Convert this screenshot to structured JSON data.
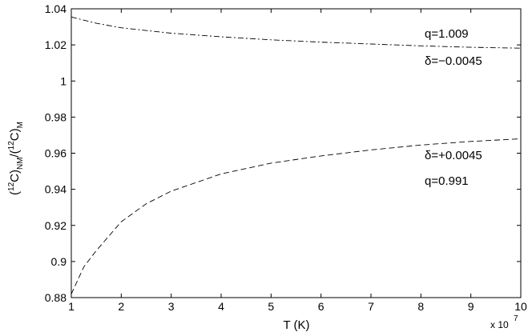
{
  "chart_data": {
    "type": "line",
    "xlabel": "T (K)",
    "ylabel": "(12C)NM/(12C)M",
    "x_multiplier": "x 10",
    "x_multiplier_exponent": "7",
    "xlim": [
      1,
      10
    ],
    "ylim": [
      0.88,
      1.04
    ],
    "x_ticks": [
      "1",
      "2",
      "3",
      "4",
      "5",
      "6",
      "7",
      "8",
      "9",
      "10"
    ],
    "y_ticks": [
      "0.88",
      "0.9",
      "0.92",
      "0.94",
      "0.96",
      "0.98",
      "1",
      "1.02",
      "1.04"
    ],
    "grid": false,
    "series": [
      {
        "line_style": "dash-dot",
        "x": [
          1,
          1.5,
          2,
          3,
          4,
          5,
          6,
          7,
          8,
          9,
          10
        ],
        "y": [
          1.0355,
          1.032,
          1.0295,
          1.0265,
          1.0245,
          1.0228,
          1.0215,
          1.0205,
          1.0195,
          1.0187,
          1.0182
        ]
      },
      {
        "line_style": "dashed",
        "x": [
          1,
          1.25,
          1.5,
          2,
          2.5,
          3,
          4,
          5,
          6,
          7,
          8,
          9,
          10
        ],
        "y": [
          0.882,
          0.897,
          0.906,
          0.922,
          0.932,
          0.939,
          0.9485,
          0.9545,
          0.9585,
          0.9618,
          0.9645,
          0.9665,
          0.968
        ]
      }
    ],
    "annotations": {
      "upper_q": "q=1.009",
      "upper_delta": "δ=−0.0045",
      "lower_delta": "δ=+0.0045",
      "lower_q": "q=0.991"
    },
    "colors": {
      "axis": "#000000",
      "line": "#000000",
      "background": "#ffffff"
    }
  }
}
